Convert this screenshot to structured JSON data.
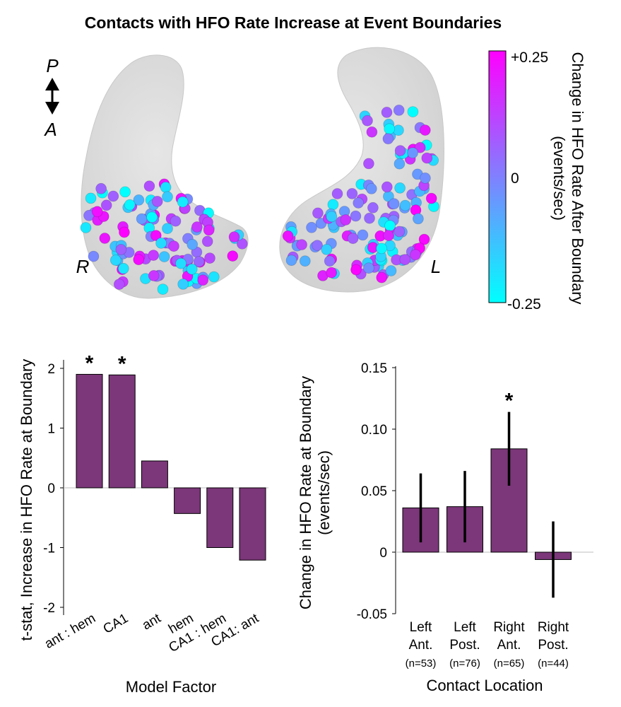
{
  "title": "Contacts with HFO Rate Increase at Event Boundaries",
  "brain": {
    "orientation_top": "P",
    "orientation_bottom": "A",
    "right_label": "R",
    "left_label": "L",
    "contact_count": 238
  },
  "colorbar": {
    "max_label": "+0.25",
    "mid_label": "0",
    "min_label": "-0.25",
    "title_line1": "Change in HFO Rate After Boundary",
    "title_line2": "(events/sec)",
    "color_high": "#ff00ff",
    "color_mid": "#8080ff",
    "color_low": "#00ffff"
  },
  "bar_color": "#7b3779",
  "chart_data": [
    {
      "type": "bar",
      "title": "",
      "ylabel": "t-stat, Increase in HFO Rate at Boundary",
      "xlabel": "Model Factor",
      "categories": [
        "ant : hem",
        "CA1",
        "ant",
        "hem",
        "CA1 : hem",
        "CA1: ant"
      ],
      "values": [
        1.9,
        1.89,
        0.45,
        -0.43,
        -1.0,
        -1.21
      ],
      "significant": [
        true,
        true,
        false,
        false,
        false,
        false
      ],
      "significance_marker": "*",
      "ylim": [
        -2.1,
        2.1
      ],
      "yticks": [
        -2,
        -1,
        0,
        1,
        2
      ],
      "ytick_labels": [
        "-2",
        "-1",
        "0",
        "1",
        "2"
      ],
      "grid": false
    },
    {
      "type": "bar",
      "title": "",
      "ylabel_line1": "Change in HFO Rate at Boundary",
      "ylabel_line2": "(events/sec)",
      "xlabel": "Contact Location",
      "categories": [
        {
          "line1": "Left",
          "line2": "Ant.",
          "n": "(n=53)"
        },
        {
          "line1": "Left",
          "line2": "Post.",
          "n": "(n=76)"
        },
        {
          "line1": "Right",
          "line2": "Ant.",
          "n": "(n=65)"
        },
        {
          "line1": "Right",
          "line2": "Post.",
          "n": "(n=44)"
        }
      ],
      "values": [
        0.036,
        0.037,
        0.084,
        -0.006
      ],
      "error_low": [
        0.008,
        0.008,
        0.054,
        -0.037
      ],
      "error_high": [
        0.064,
        0.066,
        0.114,
        0.025
      ],
      "significant": [
        false,
        false,
        true,
        false
      ],
      "significance_marker": "*",
      "ylim": [
        -0.05,
        0.15
      ],
      "yticks": [
        -0.05,
        0,
        0.05,
        0.1,
        0.15
      ],
      "ytick_labels": [
        "-0.05",
        "0",
        "0.05",
        "0.10",
        "0.15"
      ],
      "grid": false
    }
  ]
}
